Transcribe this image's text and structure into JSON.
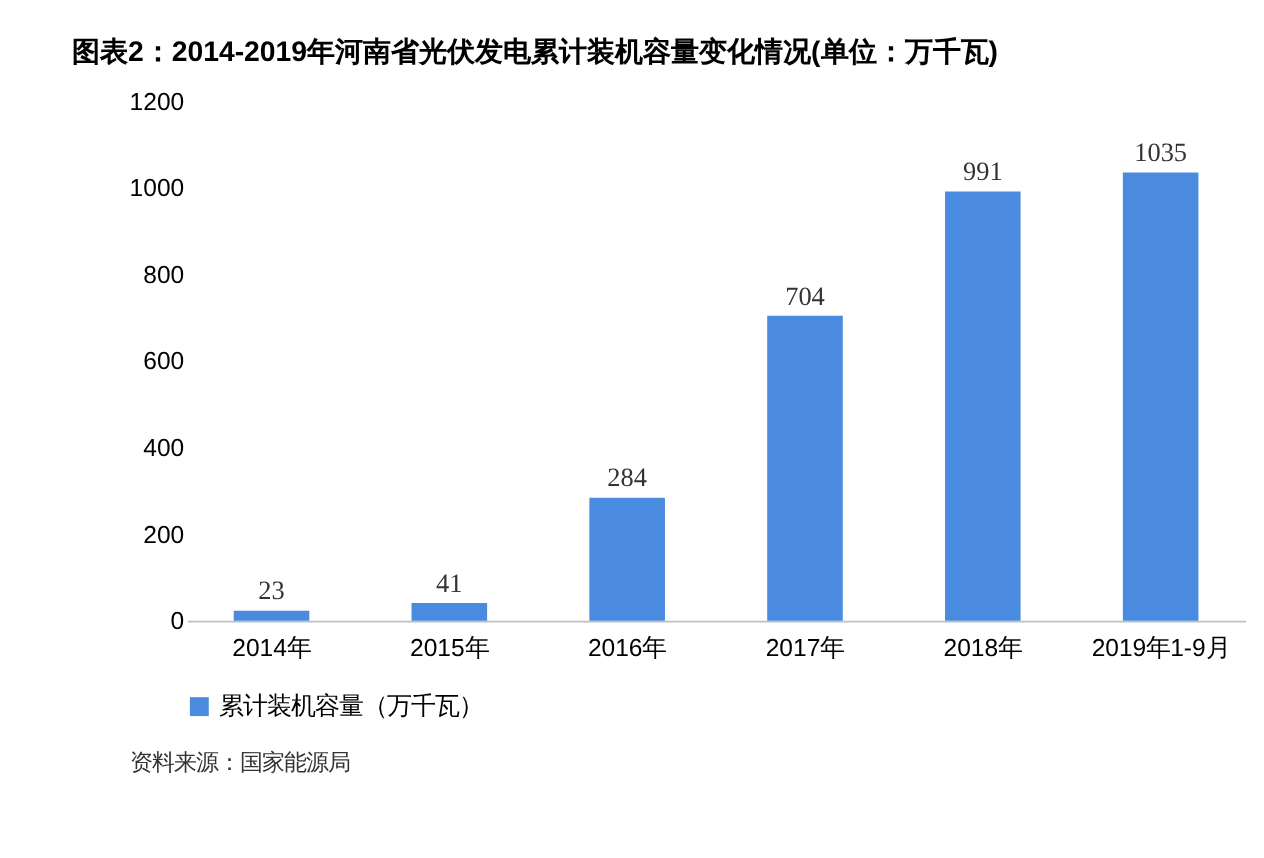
{
  "chart_data": {
    "type": "bar",
    "title": "图表2：2014-2019年河南省光伏发电累计装机容量变化情况(单位：万千瓦)",
    "categories": [
      "2014年",
      "2015年",
      "2016年",
      "2017年",
      "2018年",
      "2019年1-9月"
    ],
    "series": [
      {
        "name": "累计装机容量（万千瓦）",
        "color": "#4a8be0",
        "values": [
          23,
          41,
          284,
          704,
          991,
          1035
        ]
      }
    ],
    "ylim": [
      0,
      1200
    ],
    "yticks": [
      0,
      200,
      400,
      600,
      800,
      1000,
      1200
    ],
    "grid": false,
    "data_labels": true,
    "legend": "bottom",
    "annotations": [
      "资料来源：国家能源局"
    ]
  }
}
